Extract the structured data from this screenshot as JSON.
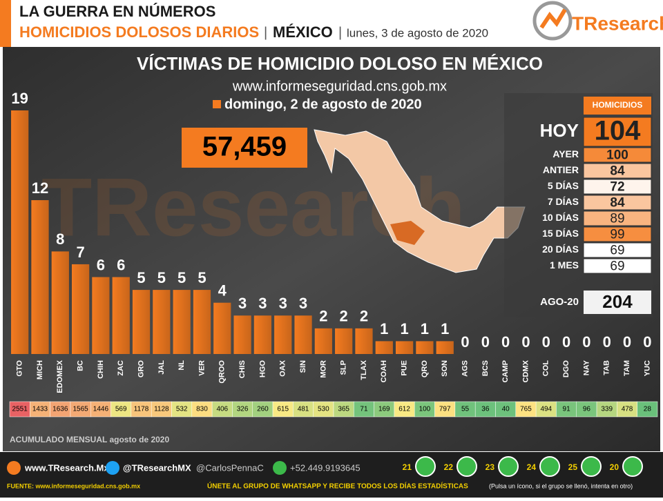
{
  "header": {
    "line1": "LA GUERRA EN NÚMEROS",
    "line2": "HOMICIDIOS DOLOSOS DIARIOS",
    "country": "MÉXICO",
    "date": "lunes, 3 de agosto de 2020",
    "logo": "TResearch"
  },
  "chart_data": {
    "type": "bar",
    "title": "VÍCTIMAS DE HOMICIDIO DOLOSO EN MÉXICO",
    "subtitle": "www.informeseguridad.cns.gob.mx",
    "categories": [
      "GTO",
      "MICH",
      "EDOMEX",
      "BC",
      "CHIH",
      "ZAC",
      "GRO",
      "JAL",
      "NL",
      "VER",
      "QROO",
      "CHIS",
      "HGO",
      "OAX",
      "SIN",
      "MOR",
      "SLP",
      "TLAX",
      "COAH",
      "PUE",
      "QRO",
      "SON",
      "AGS",
      "BCS",
      "CAMP",
      "CDMX",
      "COL",
      "DGO",
      "NAY",
      "TAB",
      "TAM",
      "YUC"
    ],
    "series": [
      {
        "name": "domingo, 2 de agosto de 2020",
        "color": "#f47b20",
        "values": [
          19,
          12,
          8,
          7,
          6,
          6,
          5,
          5,
          5,
          5,
          4,
          3,
          3,
          3,
          3,
          2,
          2,
          2,
          1,
          1,
          1,
          1,
          0,
          0,
          0,
          0,
          0,
          0,
          0,
          0,
          0,
          0
        ]
      }
    ]
  },
  "total": "57,459",
  "monthly": {
    "label": "ACUMULADO MENSUAL agosto de 2020",
    "values": [
      2551,
      1433,
      1636,
      1565,
      1446,
      569,
      1178,
      1128,
      532,
      830,
      406,
      326,
      260,
      615,
      481,
      530,
      365,
      71,
      169,
      612,
      100,
      797,
      55,
      36,
      40,
      765,
      494,
      91,
      96,
      339,
      478,
      28
    ]
  },
  "summary": {
    "header": "HOMICIDIOS",
    "rows": [
      {
        "label": "HOY",
        "value": 104
      },
      {
        "label": "AYER",
        "value": 100
      },
      {
        "label": "ANTIER",
        "value": 84
      },
      {
        "label": "5 DÍAS",
        "value": 72
      },
      {
        "label": "7 DÍAS",
        "value": 84
      },
      {
        "label": "10 DÍAS",
        "value": 89
      },
      {
        "label": "15 DÍAS",
        "value": 99
      },
      {
        "label": "20 DÍAS",
        "value": 69
      },
      {
        "label": "1 MES",
        "value": 69
      }
    ],
    "month": {
      "label": "AGO-20",
      "value": 204
    }
  },
  "footer": {
    "web": "www.TResearch.Mx",
    "twitter": "@TResearchMX",
    "handle": "@CarlosPennaC",
    "phone": "+52.449.9193645",
    "source": "FUENTE: www.informeseguridad.cns.gob.mx",
    "join": "ÚNETE AL GRUPO DE WHATSAPP Y RECIBE TODOS LOS DÍAS ESTADÍSTICAS",
    "note": "(Pulsa un ícono, si el grupo se llenó, intenta en otro)",
    "groups": [
      "21",
      "22",
      "23",
      "24",
      "25",
      "20"
    ]
  }
}
